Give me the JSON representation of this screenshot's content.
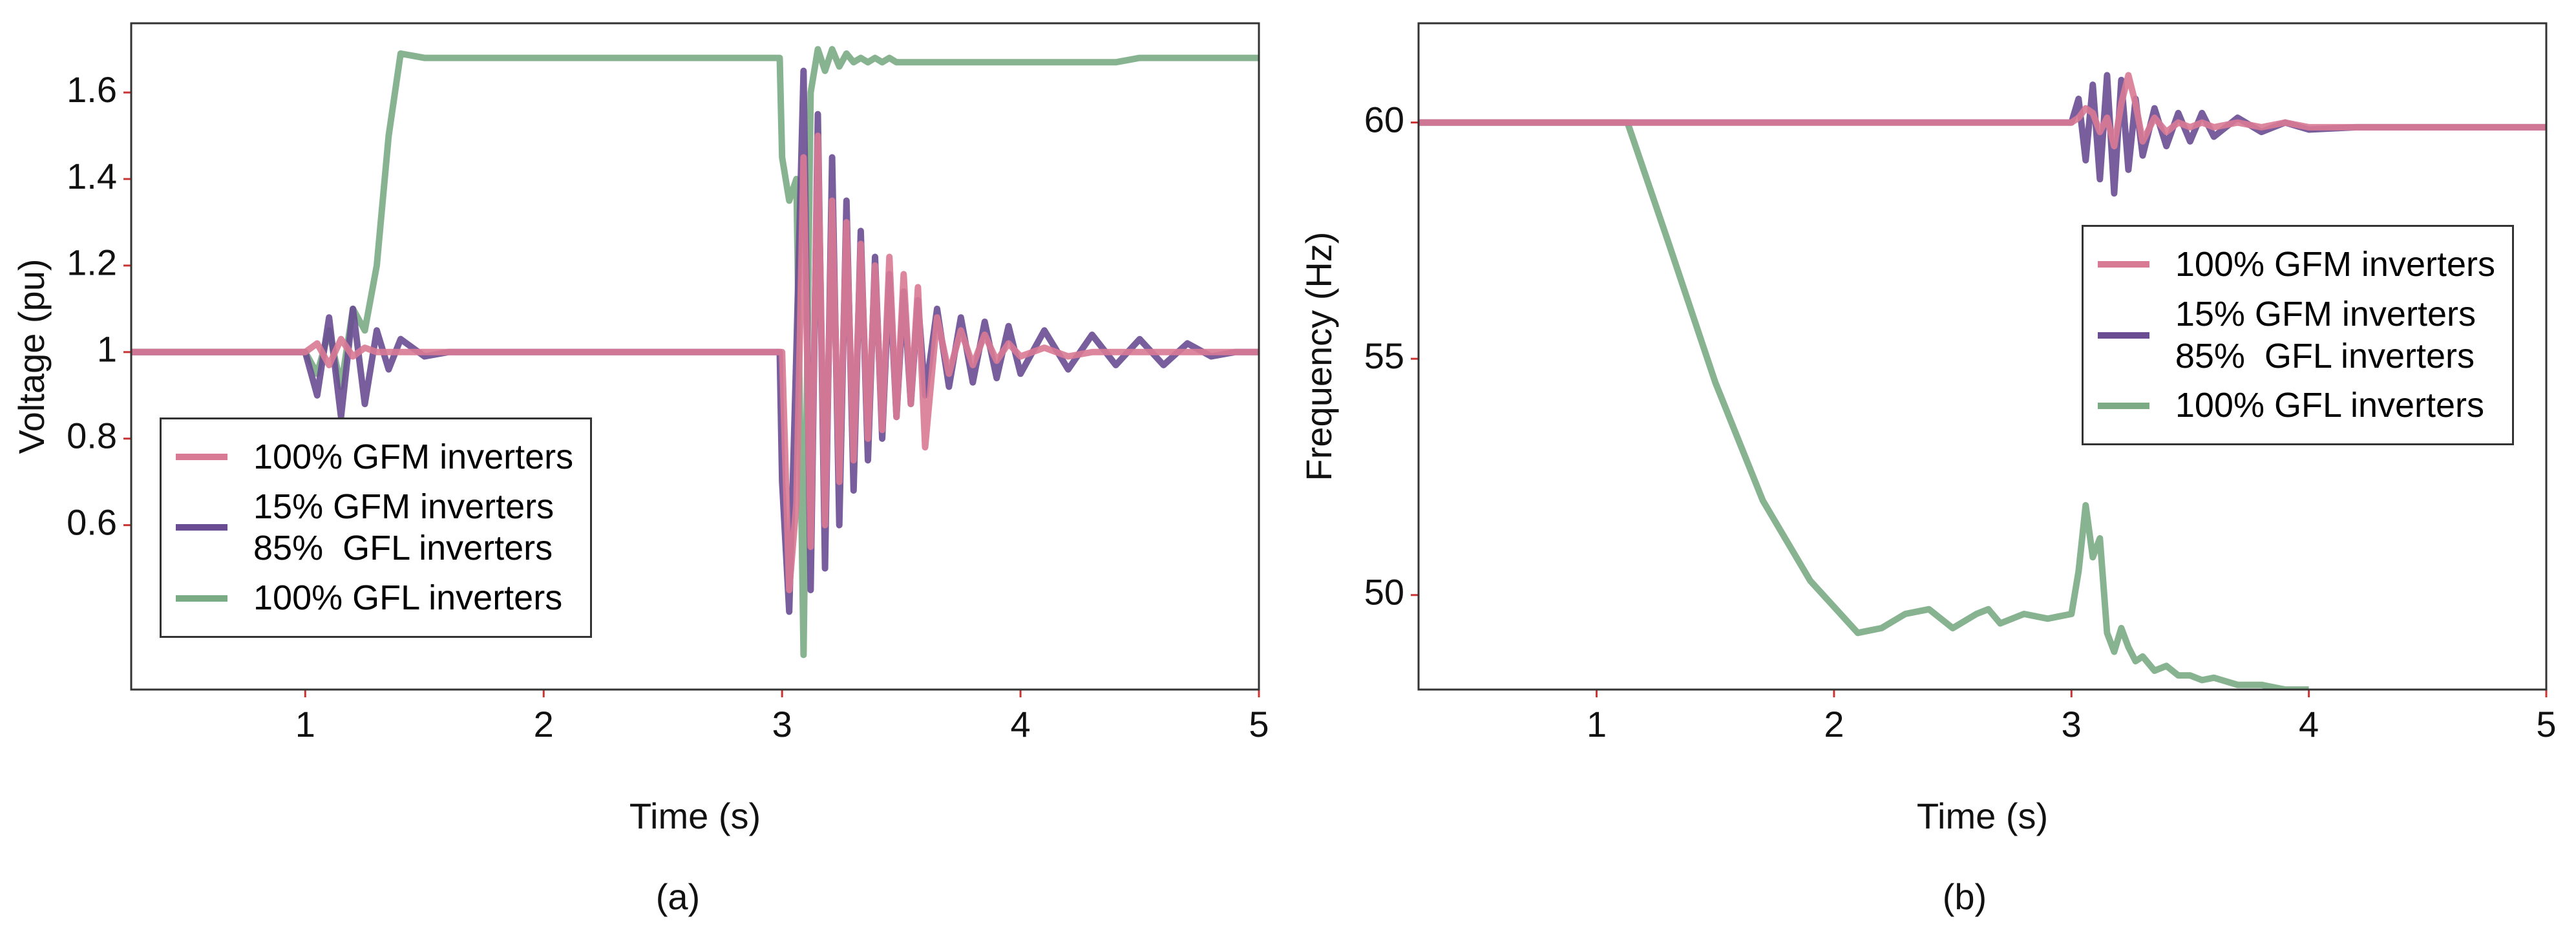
{
  "chart_data": [
    {
      "type": "line",
      "caption": "(a)",
      "xlabel": "Time (s)",
      "ylabel": "Voltage (pu)",
      "xlim": [
        0.27,
        5
      ],
      "xticks": [
        1,
        2,
        3,
        4,
        5
      ],
      "ylim": [
        0.22,
        1.76
      ],
      "yticks": [
        0.6,
        0.8,
        1,
        1.2,
        1.4,
        1.6
      ],
      "legend": "lower left",
      "x": [
        0.27,
        1.0,
        1.05,
        1.1,
        1.15,
        1.2,
        1.25,
        1.3,
        1.35,
        1.4,
        1.5,
        1.6,
        2.0,
        2.5,
        2.99,
        3.0,
        3.03,
        3.06,
        3.09,
        3.12,
        3.15,
        3.18,
        3.21,
        3.24,
        3.27,
        3.3,
        3.33,
        3.36,
        3.39,
        3.42,
        3.45,
        3.48,
        3.51,
        3.54,
        3.57,
        3.6,
        3.65,
        3.7,
        3.75,
        3.8,
        3.85,
        3.9,
        3.95,
        4.0,
        4.1,
        4.2,
        4.3,
        4.4,
        4.5,
        4.6,
        4.7,
        4.8,
        4.9,
        5.0
      ],
      "series": [
        {
          "name": "100% GFL inverters",
          "color": "#7aab84",
          "values": [
            1,
            1,
            0.95,
            1.05,
            0.92,
            1.1,
            1.05,
            1.2,
            1.5,
            1.69,
            1.68,
            1.68,
            1.68,
            1.68,
            1.68,
            1.45,
            1.35,
            1.4,
            0.3,
            1.6,
            1.7,
            1.65,
            1.7,
            1.66,
            1.69,
            1.67,
            1.68,
            1.67,
            1.68,
            1.67,
            1.68,
            1.67,
            1.67,
            1.67,
            1.67,
            1.67,
            1.67,
            1.67,
            1.67,
            1.67,
            1.67,
            1.67,
            1.67,
            1.67,
            1.67,
            1.67,
            1.67,
            1.67,
            1.68,
            1.68,
            1.68,
            1.68,
            1.68,
            1.68
          ]
        },
        {
          "name": "15% GFM inverters\n85%  GFL inverters",
          "color": "#6a4c93",
          "values": [
            1,
            1,
            0.9,
            1.08,
            0.85,
            1.1,
            0.88,
            1.05,
            0.96,
            1.03,
            0.99,
            1,
            1,
            1,
            1,
            0.7,
            0.4,
            1.0,
            1.65,
            0.45,
            1.55,
            0.5,
            1.45,
            0.6,
            1.35,
            0.68,
            1.28,
            0.75,
            1.22,
            0.8,
            1.18,
            0.85,
            1.14,
            0.88,
            1.12,
            0.9,
            1.1,
            0.92,
            1.08,
            0.93,
            1.07,
            0.94,
            1.06,
            0.95,
            1.05,
            0.96,
            1.04,
            0.97,
            1.03,
            0.97,
            1.02,
            0.99,
            1,
            1
          ]
        },
        {
          "name": "100% GFM inverters",
          "color": "#d97a95",
          "values": [
            1,
            1,
            1.02,
            0.97,
            1.03,
            0.99,
            1.01,
            1,
            1,
            1,
            1,
            1,
            1,
            1,
            1,
            1,
            0.45,
            0.65,
            1.45,
            0.55,
            1.5,
            0.6,
            1.35,
            0.7,
            1.3,
            0.75,
            1.25,
            0.8,
            1.2,
            0.82,
            1.22,
            0.85,
            1.18,
            0.88,
            1.15,
            0.78,
            1.08,
            0.95,
            1.05,
            0.97,
            1.04,
            0.98,
            1.02,
            0.99,
            1.01,
            0.99,
            1,
            1,
            1,
            1,
            1,
            1,
            1,
            1
          ]
        }
      ]
    },
    {
      "type": "line",
      "caption": "(b)",
      "xlabel": "Time (s)",
      "ylabel": "Frequency (Hz)",
      "xlim": [
        0.25,
        5
      ],
      "xticks": [
        1,
        2,
        3,
        4,
        5
      ],
      "ylim": [
        48,
        62.1
      ],
      "yticks": [
        50,
        55,
        60
      ],
      "legend": "upper right",
      "x": [
        0.25,
        1.0,
        1.13,
        1.3,
        1.5,
        1.7,
        1.9,
        2.1,
        2.2,
        2.3,
        2.4,
        2.5,
        2.6,
        2.65,
        2.7,
        2.8,
        2.9,
        3.0,
        3.03,
        3.06,
        3.09,
        3.12,
        3.15,
        3.18,
        3.21,
        3.24,
        3.27,
        3.3,
        3.35,
        3.4,
        3.45,
        3.5,
        3.55,
        3.6,
        3.7,
        3.8,
        3.9,
        4.0,
        4.2,
        5.0
      ],
      "series": [
        {
          "name": "100% GFL inverters",
          "color": "#7aab84",
          "values": [
            60,
            60,
            60,
            57.5,
            54.5,
            52.0,
            50.3,
            49.2,
            49.3,
            49.6,
            49.7,
            49.3,
            49.6,
            49.7,
            49.4,
            49.6,
            49.5,
            49.6,
            50.5,
            51.9,
            50.8,
            51.2,
            49.2,
            48.8,
            49.3,
            48.9,
            48.6,
            48.7,
            48.4,
            48.5,
            48.3,
            48.3,
            48.2,
            48.25,
            48.1,
            48.1,
            48.0,
            48.0,
            null,
            null
          ]
        },
        {
          "name": "15% GFM inverters\n85%  GFL inverters",
          "color": "#6a4c93",
          "values": [
            60,
            60,
            60,
            60,
            60,
            60,
            60,
            60,
            60,
            60,
            60,
            60,
            60,
            60,
            60,
            60,
            60,
            60,
            60.5,
            59.2,
            60.8,
            58.8,
            61.0,
            58.5,
            60.9,
            59.0,
            60.5,
            59.3,
            60.3,
            59.5,
            60.2,
            59.6,
            60.2,
            59.7,
            60.1,
            59.8,
            60.0,
            59.85,
            59.9,
            59.9
          ]
        },
        {
          "name": "100% GFM inverters",
          "color": "#d97a95",
          "values": [
            60,
            60,
            60,
            60,
            60,
            60,
            60,
            60,
            60,
            60,
            60,
            60,
            60,
            60,
            60,
            60,
            60,
            60,
            60.1,
            60.3,
            60.2,
            59.8,
            60.1,
            59.5,
            60.4,
            61.0,
            60.4,
            59.6,
            60.1,
            59.8,
            60.0,
            59.9,
            60.0,
            59.9,
            60.0,
            59.9,
            60.0,
            59.9,
            59.9,
            59.9
          ]
        }
      ]
    }
  ]
}
